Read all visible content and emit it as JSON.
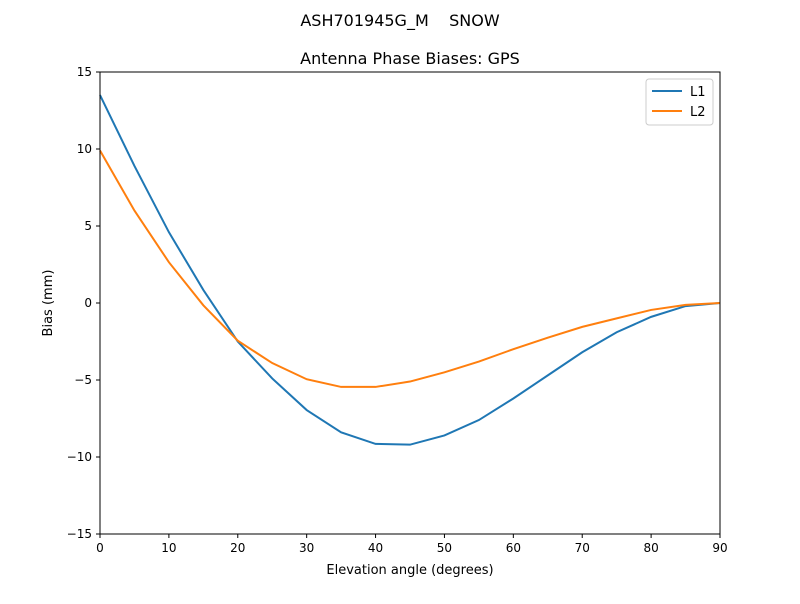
{
  "chart_data": {
    "type": "line",
    "suptitle": "ASH701945G_M    SNOW",
    "title": "Antenna Phase Biases: GPS",
    "xlabel": "Elevation angle (degrees)",
    "ylabel": "Bias (mm)",
    "xlim": [
      0,
      90
    ],
    "ylim": [
      -15,
      15
    ],
    "xticks": [
      0,
      10,
      20,
      30,
      40,
      50,
      60,
      70,
      80,
      90
    ],
    "yticks": [
      15,
      10,
      5,
      0,
      -5,
      -10,
      -15
    ],
    "ytick_labels": [
      "15",
      "10",
      "5",
      "0",
      "−5",
      "−10",
      "−15"
    ],
    "grid": false,
    "legend": "top-right",
    "x": [
      0,
      5,
      10,
      15,
      20,
      25,
      30,
      35,
      40,
      45,
      50,
      55,
      60,
      65,
      70,
      75,
      80,
      85,
      90
    ],
    "series": [
      {
        "name": "L1",
        "color": "#1f77b4",
        "values": [
          13.5,
          8.9,
          4.6,
          0.85,
          -2.5,
          -4.9,
          -6.95,
          -8.4,
          -9.15,
          -9.2,
          -8.6,
          -7.6,
          -6.2,
          -4.7,
          -3.2,
          -1.9,
          -0.9,
          -0.2,
          0.0
        ]
      },
      {
        "name": "L2",
        "color": "#ff7f0e",
        "values": [
          9.9,
          6.0,
          2.65,
          -0.15,
          -2.45,
          -3.9,
          -4.95,
          -5.45,
          -5.45,
          -5.1,
          -4.5,
          -3.8,
          -3.0,
          -2.25,
          -1.55,
          -1.0,
          -0.45,
          -0.12,
          0.0
        ]
      }
    ]
  }
}
